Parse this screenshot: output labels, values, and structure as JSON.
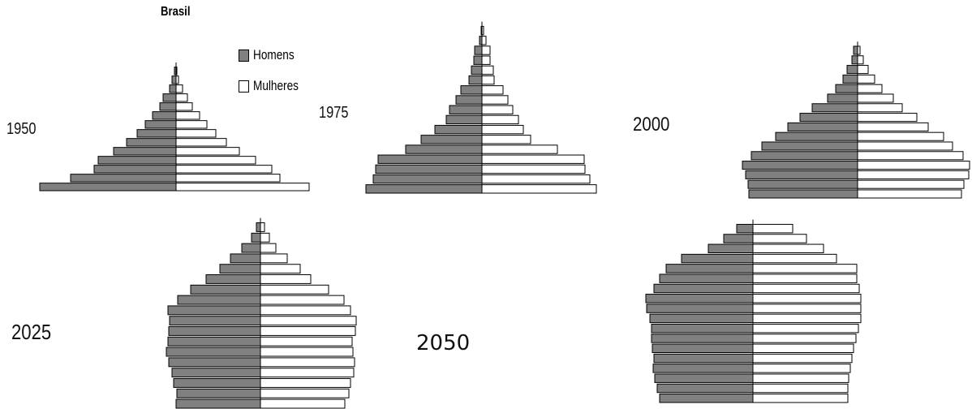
{
  "title": "Brasil",
  "legend": {
    "men_label": "Homens",
    "women_label": "Mulheres",
    "men_color": "#808080",
    "women_color": "#ffffff"
  },
  "chart_data": {
    "type": "bar",
    "subtype": "population-pyramid",
    "legend_placement": "top",
    "series_colors": {
      "Homens": "#808080",
      "Mulheres": "#ffffff"
    },
    "pyramids": [
      {
        "year": "1950",
        "men": [
          168,
          130,
          101,
          96,
          77,
          61,
          48,
          38,
          29,
          20,
          16,
          8,
          5,
          2
        ],
        "women": [
          164,
          128,
          118,
          98,
          78,
          62,
          49,
          38,
          29,
          20,
          14,
          8,
          3,
          1
        ]
      },
      {
        "year": "1975",
        "men": [
          143,
          134,
          131,
          128,
          94,
          75,
          58,
          44,
          40,
          32,
          26,
          16,
          13,
          10,
          9,
          3,
          1
        ],
        "women": [
          141,
          133,
          127,
          126,
          93,
          60,
          51,
          45,
          38,
          32,
          26,
          15,
          14,
          10,
          10,
          5,
          2
        ]
      },
      {
        "year": "2000",
        "men": [
          134,
          135,
          138,
          142,
          131,
          118,
          101,
          86,
          71,
          56,
          37,
          27,
          18,
          13,
          7,
          5
        ],
        "women": [
          128,
          131,
          137,
          138,
          130,
          117,
          106,
          87,
          73,
          55,
          44,
          30,
          21,
          13,
          7,
          3
        ]
      },
      {
        "year": "2025",
        "men": [
          104,
          103,
          107,
          109,
          113,
          116,
          114,
          113,
          112,
          114,
          102,
          86,
          67,
          50,
          37,
          23,
          11,
          5
        ],
        "women": [
          104,
          109,
          111,
          115,
          116,
          114,
          113,
          117,
          118,
          111,
          103,
          84,
          62,
          49,
          33,
          19,
          11,
          5
        ]
      },
      {
        "year": "2050",
        "men": [
          115,
          118,
          121,
          123,
          122,
          124,
          125,
          125,
          127,
          131,
          132,
          122,
          115,
          107,
          88,
          55,
          36,
          20
        ],
        "women": [
          117,
          117,
          118,
          120,
          122,
          124,
          127,
          130,
          133,
          133,
          133,
          131,
          128,
          128,
          103,
          87,
          66,
          49
        ]
      }
    ]
  }
}
